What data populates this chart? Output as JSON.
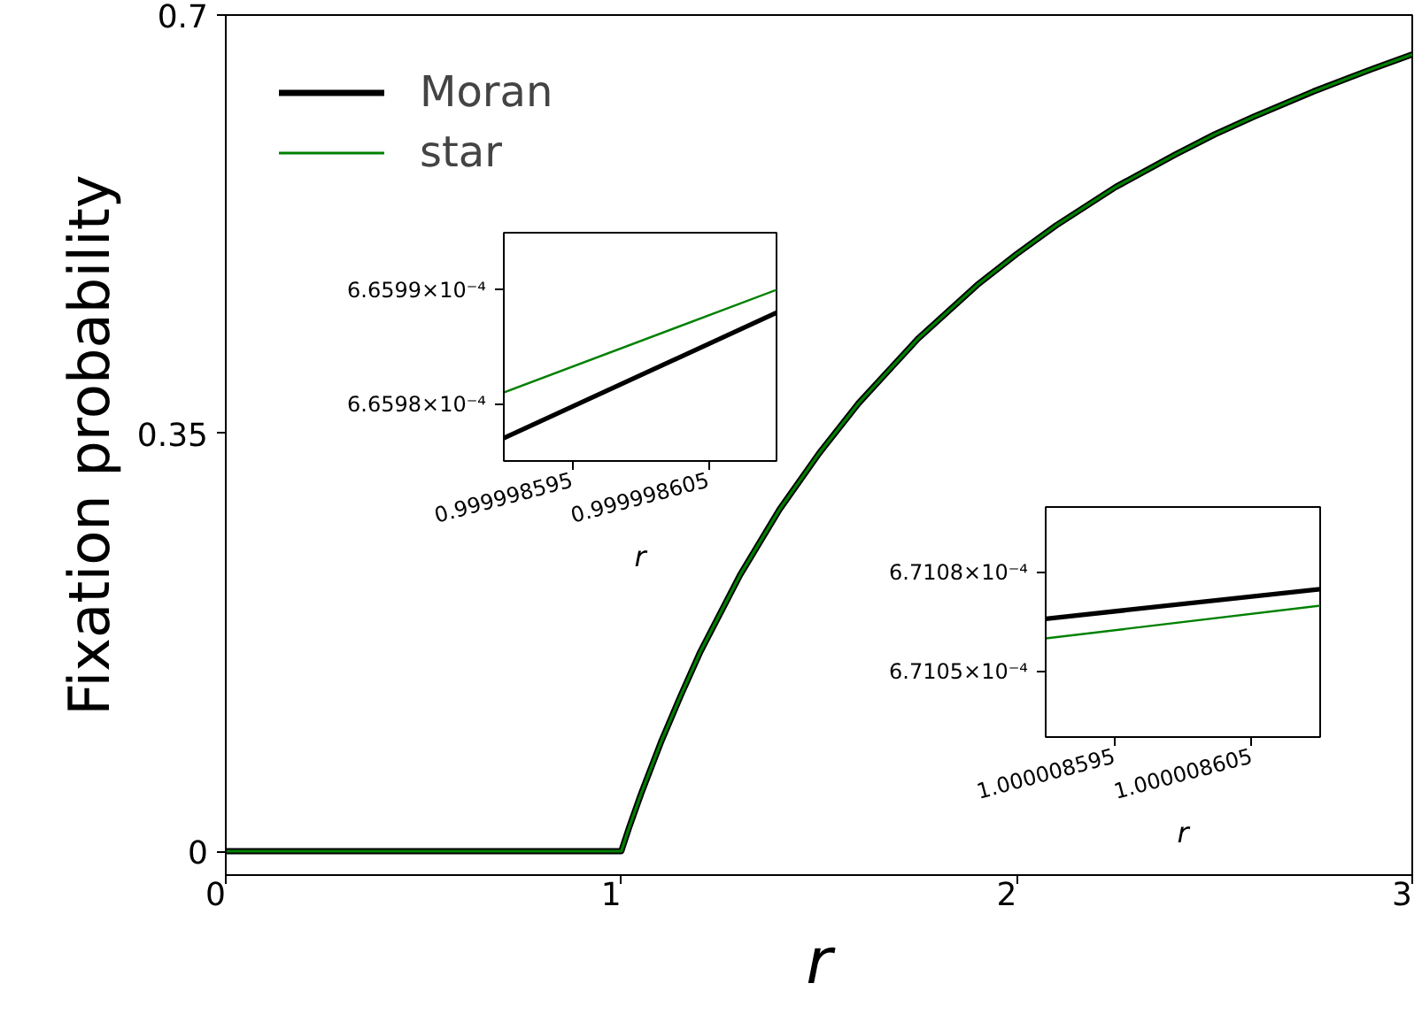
{
  "chart_data": [
    {
      "type": "line",
      "xlabel": "r",
      "ylabel": "Fixation probability",
      "xlim": [
        0,
        3
      ],
      "ylim": [
        -0.02,
        0.7
      ],
      "xticks": [
        0,
        1,
        2,
        3
      ],
      "yticks": [
        0,
        0.35,
        0.7
      ],
      "legend": "top left",
      "x": [
        0,
        0.5,
        1,
        1.02,
        1.05,
        1.1,
        1.15,
        1.2,
        1.3,
        1.4,
        1.5,
        1.6,
        1.75,
        1.9,
        2,
        2.1,
        2.25,
        2.4,
        2.5,
        2.6,
        2.75,
        2.9,
        3
      ],
      "series": [
        {
          "name": "Moran",
          "color": "#000000",
          "values": [
            0,
            0,
            0,
            0.02,
            0.048,
            0.091,
            0.13,
            0.167,
            0.231,
            0.286,
            0.333,
            0.375,
            0.429,
            0.474,
            0.5,
            0.524,
            0.556,
            0.583,
            0.6,
            0.615,
            0.636,
            0.655,
            0.667
          ]
        },
        {
          "name": "star",
          "color": "#008000",
          "values": [
            0,
            0,
            0,
            0.02,
            0.048,
            0.091,
            0.13,
            0.167,
            0.231,
            0.286,
            0.333,
            0.375,
            0.429,
            0.474,
            0.5,
            0.524,
            0.556,
            0.583,
            0.6,
            0.615,
            0.636,
            0.655,
            0.667
          ]
        }
      ]
    },
    {
      "type": "line",
      "xlabel": "r",
      "xlim": [
        0.99999859,
        0.99999861
      ],
      "ylim": [
        0.000665975,
        0.000665995
      ],
      "xticks": [
        0.999998595,
        0.999998605
      ],
      "yticks": [
        {
          "value": 0.00066598,
          "label": "6.6598×10⁻⁴"
        },
        {
          "value": 0.00066599,
          "label": "6.6599×10⁻⁴"
        }
      ],
      "x": [
        0.99999859,
        0.99999861
      ],
      "series": [
        {
          "color": "#000000",
          "values": [
            0.000665977,
            0.000665988
          ]
        },
        {
          "color": "#008000",
          "values": [
            0.000665981,
            0.00066599
          ]
        }
      ]
    },
    {
      "type": "line",
      "xlabel": "r",
      "xlim": [
        1.00000859,
        1.00000861
      ],
      "ylim": [
        0.00067103,
        0.0006711
      ],
      "xticks": [
        1.000008595,
        1.000008605
      ],
      "yticks": [
        {
          "value": 0.00067105,
          "label": "6.7105×10⁻⁴"
        },
        {
          "value": 0.00067108,
          "label": "6.7108×10⁻⁴"
        }
      ],
      "x": [
        1.00000859,
        1.00000861
      ],
      "series": [
        {
          "color": "#000000",
          "values": [
            0.000671066,
            0.000671075
          ]
        },
        {
          "color": "#008000",
          "values": [
            0.00067106,
            0.00067107
          ]
        }
      ]
    }
  ]
}
